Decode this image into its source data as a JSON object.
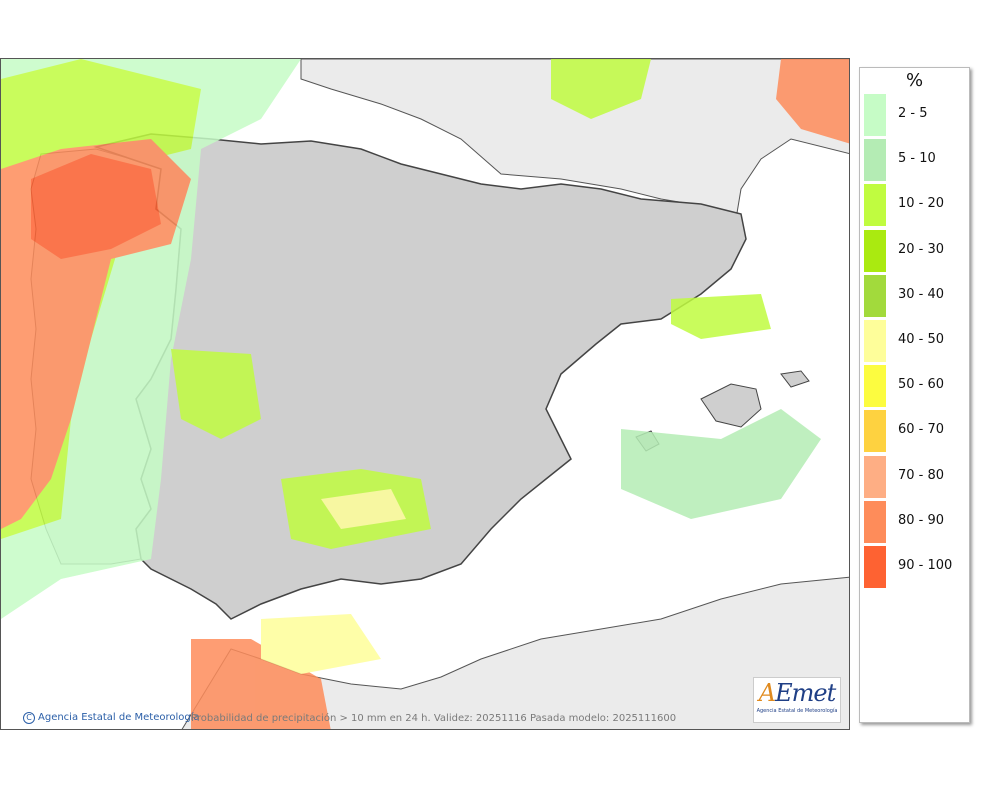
{
  "legend": {
    "unit": "%",
    "items": [
      {
        "label": "2 - 5",
        "color": "#c6fcc6"
      },
      {
        "label": "5 - 10",
        "color": "#b4ecb4"
      },
      {
        "label": "10 - 20",
        "color": "#c0fc40"
      },
      {
        "label": "20 - 30",
        "color": "#aaea10"
      },
      {
        "label": "30 - 40",
        "color": "#a2da3c"
      },
      {
        "label": "40 - 50",
        "color": "#fefe9a"
      },
      {
        "label": "50 - 60",
        "color": "#fcfc40"
      },
      {
        "label": "60 - 70",
        "color": "#fed240"
      },
      {
        "label": "70 - 80",
        "color": "#feae84"
      },
      {
        "label": "80 - 90",
        "color": "#fe8c5a"
      },
      {
        "label": "90 - 100",
        "color": "#fe6232"
      }
    ]
  },
  "map": {
    "land_color": "#cfcfcf",
    "sea_color": "#ffffff",
    "foreign_land_color": "#ebebeb"
  },
  "footer": {
    "copyright_symbol": "C",
    "copyright": "Agencia Estatal de Meteorología",
    "caption": "Probabilidad de precipitación > 10 mm en 24 h. Validez: 20251116 Pasada modelo: 2025111600"
  },
  "logo": {
    "mark_a": "A",
    "mark_rest": "Emet",
    "subtitle": "Agencia Estatal de Meteorología"
  }
}
